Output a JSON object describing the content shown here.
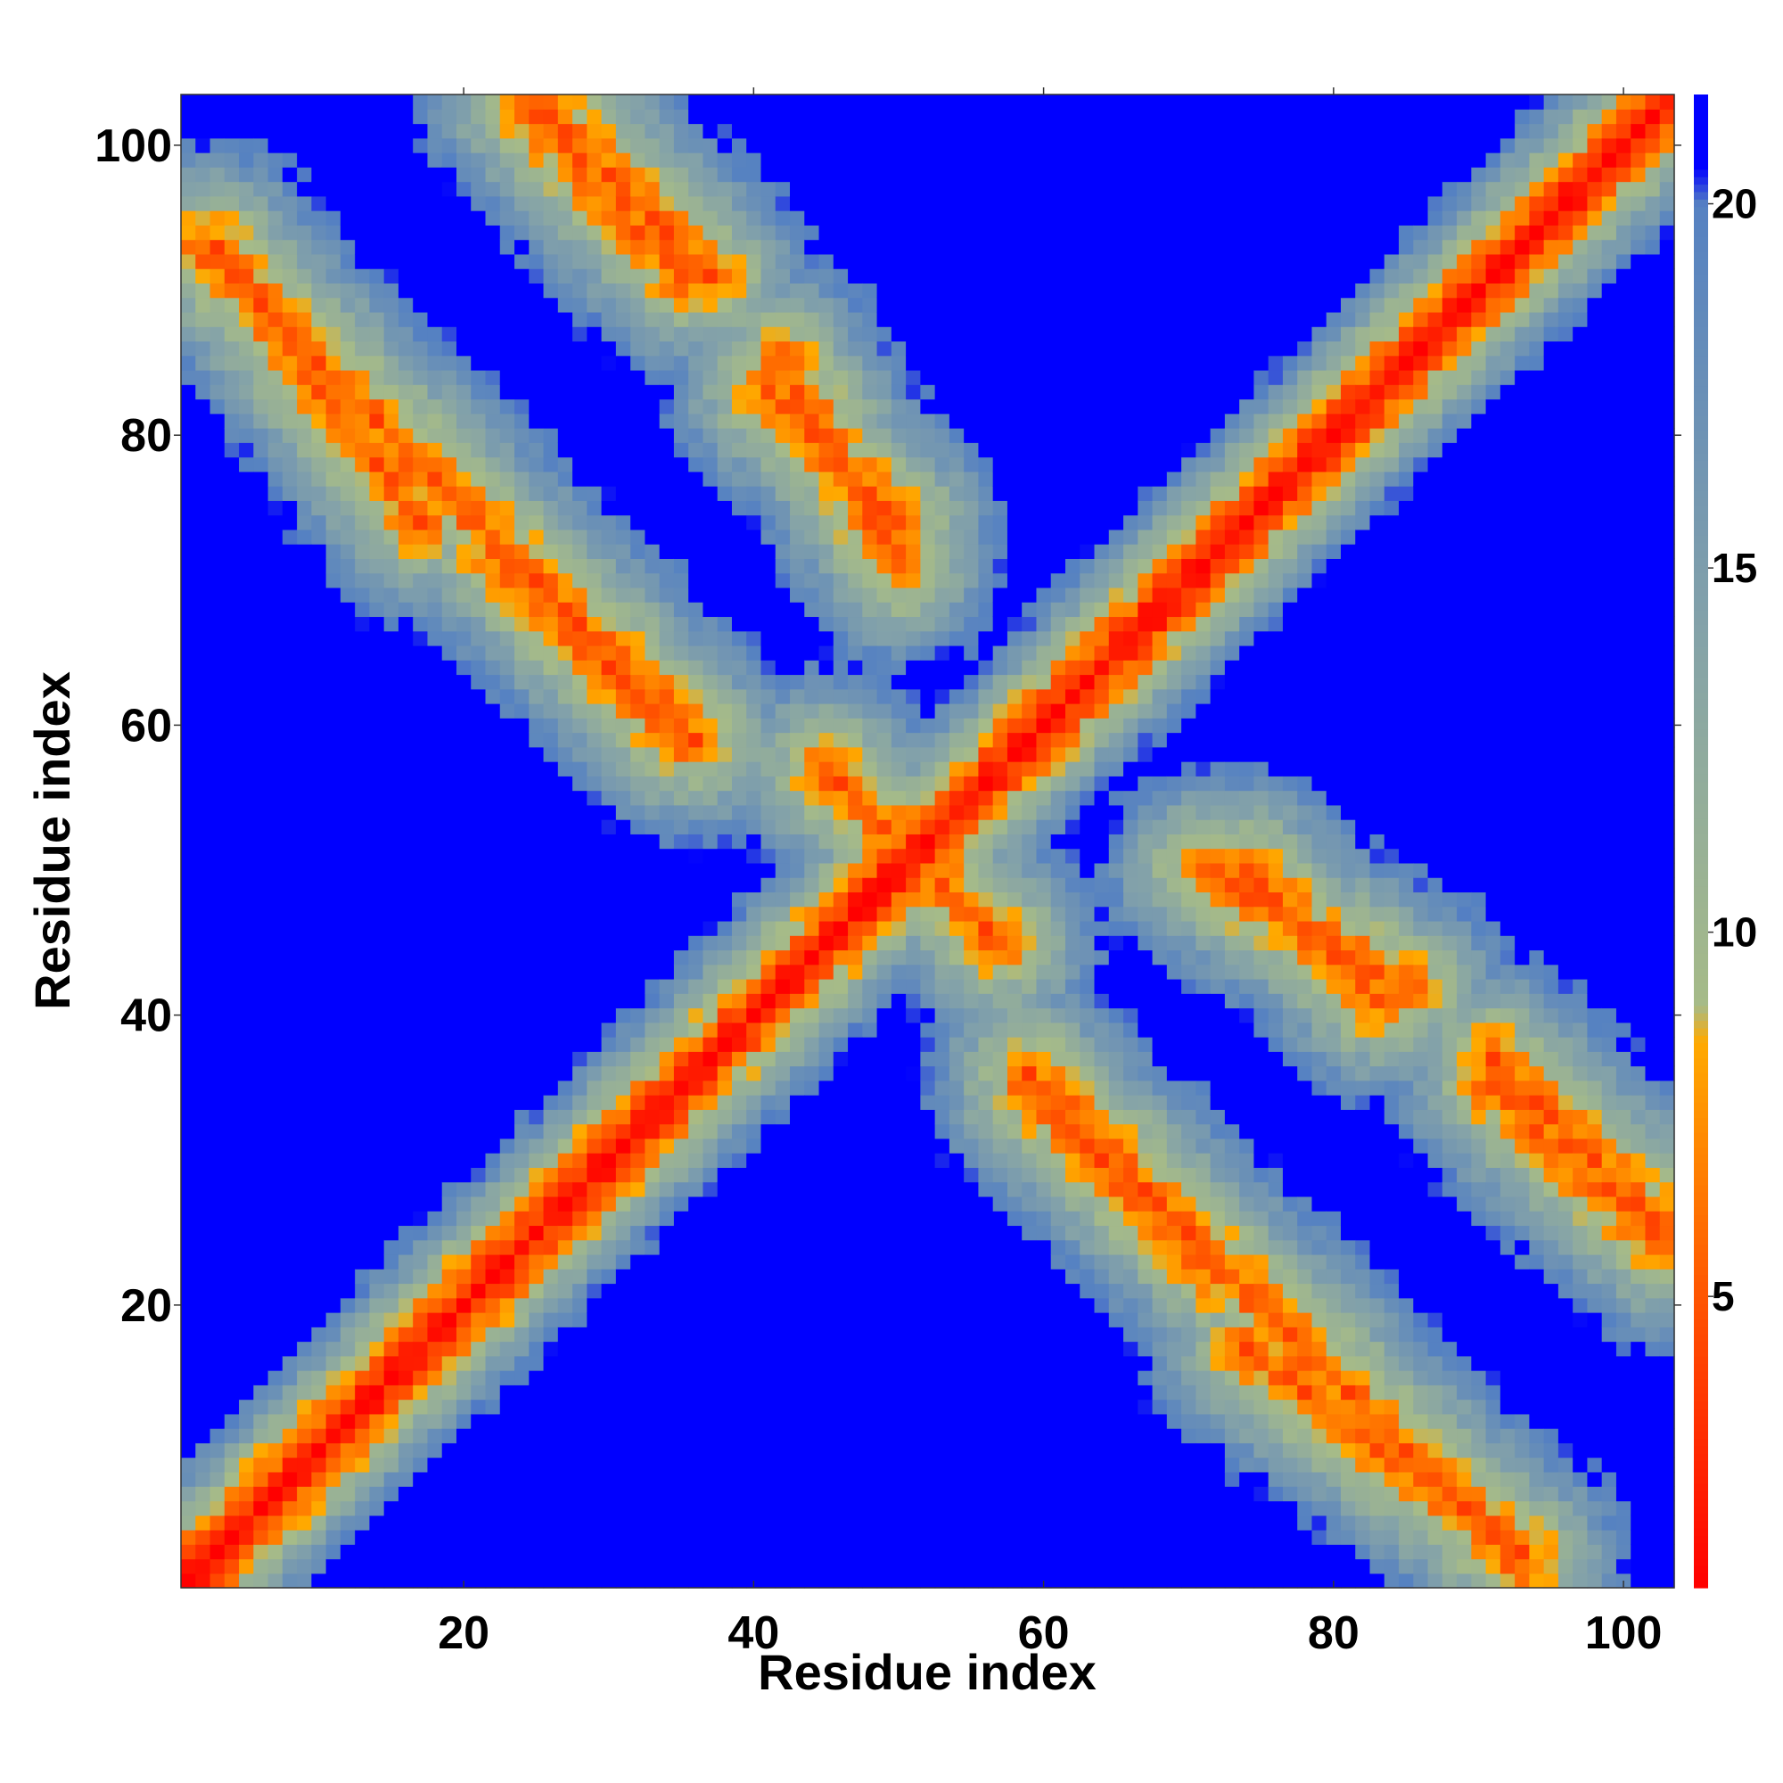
{
  "chart_data": {
    "type": "heatmap",
    "title": "",
    "xlabel": "Residue index",
    "ylabel": "Residue index",
    "xlim": [
      1,
      103
    ],
    "ylim": [
      1,
      103
    ],
    "x_ticks": [
      20,
      40,
      60,
      80,
      100
    ],
    "y_ticks": [
      20,
      40,
      60,
      80,
      100
    ],
    "x_tick_labels": [
      "20",
      "40",
      "60",
      "80",
      "100"
    ],
    "y_tick_labels": [
      "20",
      "40",
      "60",
      "80",
      "100"
    ],
    "grid": false,
    "colorbar": {
      "ticks": [
        5,
        10,
        15,
        20
      ],
      "tick_labels": [
        "5",
        "10",
        "15",
        "20"
      ],
      "range": [
        1,
        21.5
      ],
      "placement": "right",
      "color_stops": [
        {
          "value": 1,
          "color": "#ff0000"
        },
        {
          "value": 5,
          "color": "#ff5500"
        },
        {
          "value": 8.5,
          "color": "#ffaa00"
        },
        {
          "value": 9,
          "color": "#a6bb88"
        },
        {
          "value": 14,
          "color": "#85a3a8"
        },
        {
          "value": 20,
          "color": "#5581c2"
        },
        {
          "value": 20.5,
          "color": "#0000ff"
        }
      ]
    },
    "description_of_values": "Symmetric residue-residue distance map; values ~1 on the diagonal (red), rising to >20 (blue) in large blocks.",
    "cell_size": 1,
    "n_residues": 103,
    "notable_band_features": [
      {
        "kind": "main_diagonal",
        "from": [
          1,
          1
        ],
        "to": [
          103,
          103
        ]
      },
      {
        "kind": "anti_diagonal_band",
        "from": [
          45,
          57
        ],
        "to": [
          57,
          45
        ]
      },
      {
        "kind": "antiparallel_band",
        "from": [
          2,
          93
        ],
        "to": [
          36,
          59
        ]
      },
      {
        "kind": "antiparallel_band",
        "from": [
          24,
          103
        ],
        "to": [
          35,
          91
        ]
      },
      {
        "kind": "antiparallel_band",
        "from": [
          42,
          85
        ],
        "to": [
          50,
          71
        ]
      },
      {
        "kind": "antiparallel_band",
        "from": [
          59,
          35
        ],
        "to": [
          72,
          22
        ]
      },
      {
        "kind": "antiparallel_band",
        "from": [
          74,
          17
        ],
        "to": [
          93,
          3
        ]
      },
      {
        "kind": "antiparallel_band",
        "from": [
          74,
          50
        ],
        "to": [
          83,
          41
        ]
      },
      {
        "kind": "antiparallel_band",
        "from": [
          91,
          37
        ],
        "to": [
          103,
          25
        ]
      }
    ]
  }
}
